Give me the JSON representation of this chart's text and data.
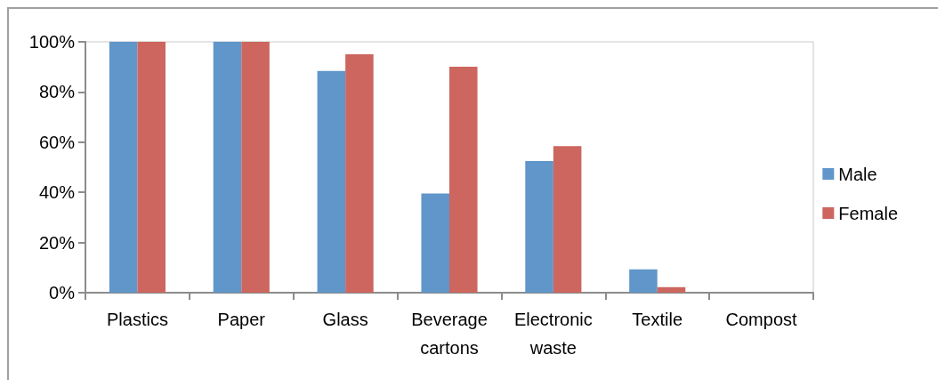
{
  "chart_data": {
    "type": "bar",
    "categories": [
      "Plastics",
      "Paper",
      "Glass",
      "Beverage\ncartons",
      "Electronic\nwaste",
      "Textile",
      "Compost"
    ],
    "series": [
      {
        "name": "Male",
        "color": "#6096c9",
        "values": [
          100,
          100,
          88.4,
          39.5,
          52.5,
          9.3,
          0
        ]
      },
      {
        "name": "Female",
        "color": "#cc665e",
        "values": [
          100,
          100,
          95,
          90.1,
          58.4,
          2.2,
          0
        ]
      }
    ],
    "ylim": [
      0,
      100
    ],
    "yticks": [
      {
        "value": 0,
        "label": "0%"
      },
      {
        "value": 20,
        "label": "20%"
      },
      {
        "value": 40,
        "label": "40%"
      },
      {
        "value": 60,
        "label": "60%"
      },
      {
        "value": 80,
        "label": "80%"
      },
      {
        "value": 100,
        "label": "100%"
      }
    ],
    "grid": false,
    "legend": "right"
  }
}
